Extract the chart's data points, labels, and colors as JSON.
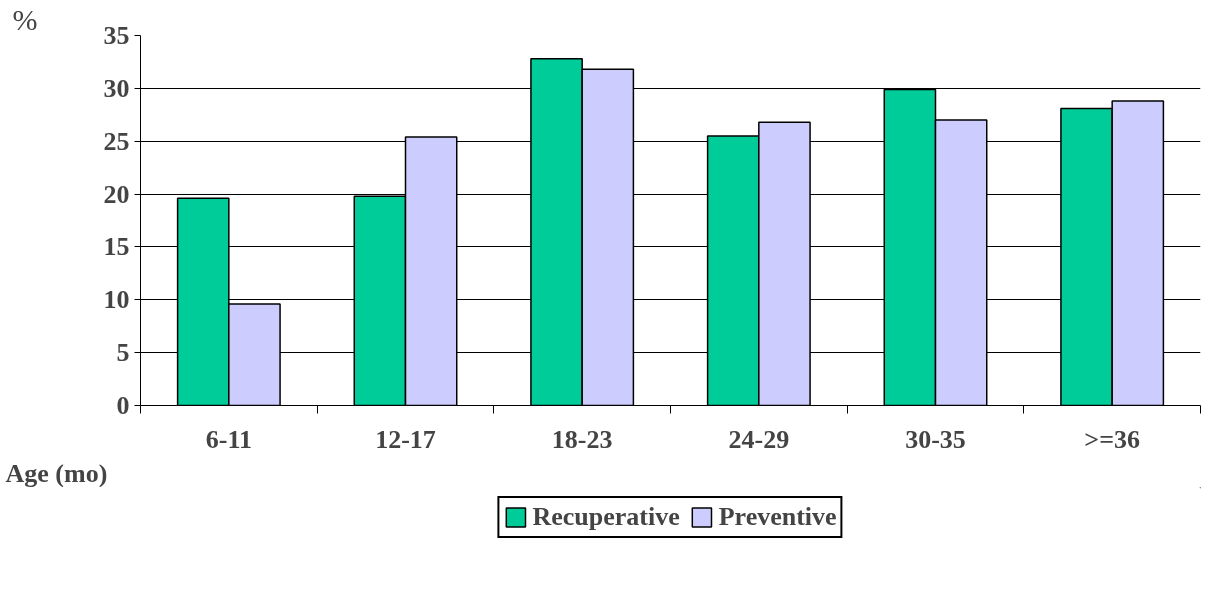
{
  "chart_data": {
    "type": "bar",
    "ylabel": "%",
    "xlabel": "Age (mo)",
    "categories": [
      "6-11",
      "12-17",
      "18-23",
      "24-29",
      "30-35",
      ">=36"
    ],
    "series": [
      {
        "name": "Recuperative",
        "color": "#00cc99",
        "values": [
          19.6,
          19.8,
          32.8,
          25.5,
          29.9,
          28.1
        ]
      },
      {
        "name": "Preventive",
        "color": "#ccccff",
        "values": [
          9.6,
          25.4,
          31.8,
          26.8,
          27.0,
          28.8
        ]
      }
    ],
    "ylim": [
      0,
      35
    ],
    "yticks": [
      0,
      5,
      10,
      15,
      20,
      25,
      30,
      35
    ],
    "grid": "y",
    "legend": "bottom"
  }
}
